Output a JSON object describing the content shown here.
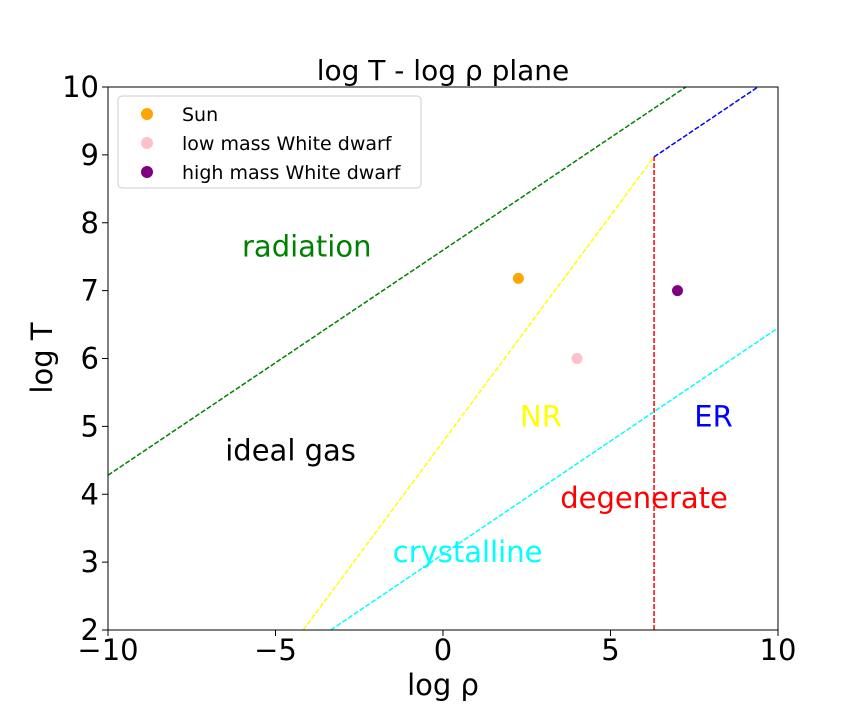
{
  "chart_data": {
    "type": "scatter",
    "title": "log T - log ρ plane",
    "xlabel": "log ρ",
    "ylabel": "log T",
    "xlim": [
      -10,
      10
    ],
    "ylim": [
      2,
      10
    ],
    "xticks": [
      -10,
      -5,
      0,
      5,
      10
    ],
    "xtick_labels": [
      "−10",
      "−5",
      "0",
      "5",
      "10"
    ],
    "yticks": [
      2,
      3,
      4,
      5,
      6,
      7,
      8,
      9,
      10
    ],
    "ytick_labels": [
      "2",
      "3",
      "4",
      "5",
      "6",
      "7",
      "8",
      "9",
      "10"
    ],
    "grid": false,
    "legend_position": "top-left",
    "series": [
      {
        "name": "Sun",
        "color": "#ffa500",
        "x": [
          2.25
        ],
        "y": [
          7.18
        ]
      },
      {
        "name": "low mass White dwarf",
        "color": "#ffc0cb",
        "x": [
          4.0
        ],
        "y": [
          6.0
        ]
      },
      {
        "name": "high mass White dwarf",
        "color": "#800080",
        "x": [
          7.0
        ],
        "y": [
          7.0
        ]
      }
    ],
    "boundary_lines": [
      {
        "color": "#008000",
        "x": [
          -10,
          7.25
        ],
        "y": [
          4.28,
          10.0
        ]
      },
      {
        "color": "#ffff00",
        "x": [
          -4.17,
          6.3
        ],
        "y": [
          2.0,
          8.97
        ]
      },
      {
        "color": "#0000ff",
        "x": [
          6.3,
          9.4
        ],
        "y": [
          8.97,
          10.0
        ]
      },
      {
        "color": "#ff0000",
        "x": [
          6.3,
          6.3
        ],
        "y": [
          2.0,
          8.97
        ]
      },
      {
        "color": "#00ffff",
        "x": [
          -3.35,
          10
        ],
        "y": [
          2.0,
          6.45
        ]
      }
    ],
    "region_labels": [
      {
        "text": "radiation",
        "color": "#008000",
        "x": -6.0,
        "y": 7.5
      },
      {
        "text": "ideal gas",
        "color": "#000000",
        "x": -6.5,
        "y": 4.5
      },
      {
        "text": "NR",
        "color": "#ffff00",
        "x": 2.3,
        "y": 5.0
      },
      {
        "text": "ER",
        "color": "#0000ff",
        "x": 7.5,
        "y": 5.0
      },
      {
        "text": "degenerate",
        "color": "#ff0000",
        "x": 3.5,
        "y": 3.8
      },
      {
        "text": "crystalline",
        "color": "#00ffff",
        "x": -1.5,
        "y": 3.0
      }
    ]
  }
}
